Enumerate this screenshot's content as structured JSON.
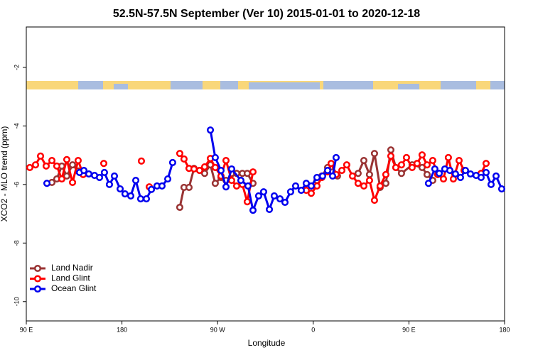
{
  "chart_data": {
    "type": "line",
    "title": "52.5N-57.5N September (Ver 10)   2015-01-01 to 2020-12-18",
    "x_label": "Longitude",
    "y_label": "XCO2 - MLO trend (ppm)",
    "xlim": [
      90,
      540
    ],
    "xticks": [
      {
        "value": 90,
        "label": "90 E"
      },
      180,
      {
        "value": 270,
        "label": "90 W"
      },
      {
        "value": 360,
        "label": "0"
      },
      {
        "value": 450,
        "label": "90 E"
      },
      {
        "value": 540,
        "label": "180"
      }
    ],
    "ylim": [
      -10.66,
      -0.62
    ],
    "yticks": [
      -10,
      -8,
      -6,
      -4,
      -2
    ],
    "legend": "bottomleft",
    "series": [
      {
        "name": "Land Nadir",
        "color": "#993333",
        "x": [
          114.1,
          118.7,
          123.4,
          128.1,
          133.5,
          138.8,
          null,
          234.4,
          238.4,
          243.1,
          247.8,
          253.1,
          257.8,
          263.2,
          267.8,
          273.2,
          277.9,
          287.9,
          293.3,
          297.9,
          303.3,
          null,
          363.5,
          368.1,
          373.5,
          378.2,
          382.8,
          null,
          402.2,
          407.6,
          412.9,
          417.6,
          422.9,
          428.3,
          433.0,
          437.7,
          443.0,
          453.0,
          462.4,
          467.1,
          472.4
        ],
        "values": [
          -5.93,
          -5.81,
          -5.37,
          -5.71,
          -5.33,
          -5.54,
          null,
          -6.78,
          -6.1,
          -6.1,
          -5.45,
          -5.52,
          -5.62,
          -5.33,
          -5.96,
          -5.76,
          -5.86,
          -5.62,
          -5.62,
          -5.62,
          -5.96,
          null,
          -5.86,
          -5.71,
          -5.42,
          -5.57,
          -5.71,
          null,
          -5.62,
          -5.18,
          -5.66,
          -4.94,
          -6.1,
          -5.96,
          -4.82,
          -5.42,
          -5.62,
          -5.33,
          -5.42,
          -5.66,
          -5.86
        ]
      },
      {
        "name": "Land Glint",
        "color": "#ff0000",
        "x": [
          93.3,
          98.7,
          103.4,
          108.7,
          114.1,
          118.7,
          123.4,
          128.1,
          133.5,
          138.8,
          143.5,
          null,
          162.9,
          null,
          198.3,
          null,
          205.7,
          null,
          234.4,
          238.4,
          243.1,
          247.8,
          253.1,
          257.8,
          263.2,
          267.8,
          273.2,
          277.9,
          283.2,
          287.9,
          293.3,
          297.9,
          303.3,
          null,
          353.4,
          358.1,
          363.5,
          368.1,
          373.5,
          376.8,
          381.5,
          386.9,
          391.5,
          396.9,
          402.2,
          407.6,
          412.9,
          417.6,
          422.9,
          428.3,
          433.0,
          437.7,
          443.0,
          447.7,
          453.0,
          457.7,
          462.4,
          467.1,
          472.4,
          477.1,
          482.5,
          487.1,
          491.8,
          497.2,
          501.9,
          null,
          517.9,
          522.6
        ],
        "values": [
          -5.42,
          -5.33,
          -5.03,
          -5.37,
          -5.18,
          -5.37,
          -5.81,
          -5.15,
          -5.93,
          -5.18,
          -5.66,
          null,
          -5.28,
          null,
          -5.2,
          null,
          -6.08,
          null,
          -4.94,
          -5.13,
          -5.45,
          -5.47,
          -5.52,
          -5.4,
          -5.11,
          -5.42,
          -5.71,
          -5.18,
          -5.86,
          -6.05,
          -6.0,
          -6.59,
          -5.57,
          null,
          -6.2,
          -6.3,
          -6.05,
          -5.76,
          -5.57,
          -5.28,
          -5.66,
          -5.52,
          -5.33,
          -5.71,
          -5.96,
          -6.05,
          -5.86,
          -6.54,
          -6.05,
          -5.66,
          -5.03,
          -5.42,
          -5.33,
          -5.08,
          -5.42,
          -5.28,
          -4.99,
          -5.33,
          -5.18,
          -5.66,
          -5.81,
          -5.08,
          -5.81,
          -5.18,
          -5.52,
          null,
          -5.62,
          -5.28
        ]
      },
      {
        "name": "Ocean Glint",
        "color": "#0000ee",
        "x": [
          109.4,
          null,
          140.1,
          144.2,
          148.8,
          154.2,
          158.9,
          163.5,
          168.2,
          172.9,
          178.3,
          182.9,
          188.3,
          193.0,
          197.6,
          203.0,
          207.7,
          213.0,
          217.7,
          223.1,
          227.7,
          null,
          263.2,
          267.8,
          273.2,
          277.9,
          283.2,
          291.9,
          298.6,
          303.3,
          308.6,
          313.3,
          318.7,
          323.3,
          328.7,
          333.4,
          338.7,
          343.4,
          348.7,
          353.4,
          358.1,
          363.5,
          368.8,
          373.5,
          378.2,
          381.5,
          null,
          468.4,
          474.4,
          478.5,
          483.8,
          488.5,
          493.8,
          498.5,
          503.2,
          507.9,
          513.2,
          517.9,
          522.6,
          527.3,
          532.0,
          537.3
        ],
        "values": [
          -5.96,
          null,
          -5.59,
          -5.52,
          -5.64,
          -5.69,
          -5.76,
          -5.59,
          -6.0,
          -5.71,
          -6.15,
          -6.32,
          -6.39,
          -5.86,
          -6.49,
          -6.49,
          -6.17,
          -6.05,
          -6.05,
          -5.81,
          -5.25,
          null,
          -4.14,
          -5.08,
          -5.52,
          -6.08,
          -5.47,
          -5.86,
          -6.05,
          -6.88,
          -6.39,
          -6.25,
          -6.85,
          -6.39,
          -6.49,
          -6.61,
          -6.25,
          -6.05,
          -6.2,
          -5.96,
          -6.05,
          -5.76,
          -5.71,
          -5.52,
          -5.71,
          -5.08,
          null,
          -5.96,
          -5.47,
          -5.62,
          -5.47,
          -5.52,
          -5.64,
          -5.76,
          -5.52,
          -5.64,
          -5.69,
          -5.76,
          -5.59,
          -6.0,
          -5.71,
          -6.15
        ]
      }
    ]
  }
}
